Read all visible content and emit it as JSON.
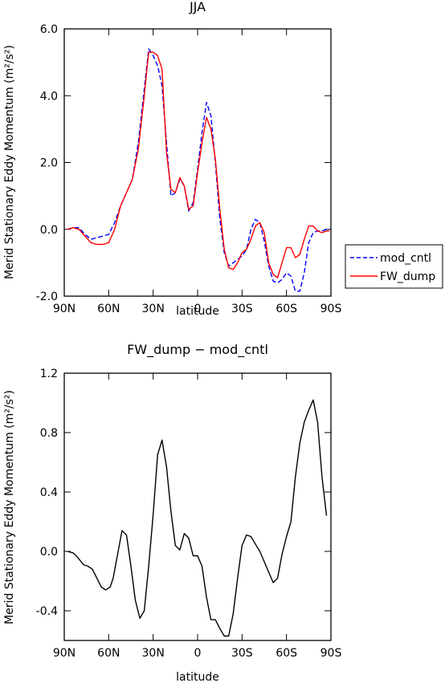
{
  "chart_data": [
    {
      "type": "line",
      "title": "JJA",
      "xlabel": "latitude",
      "ylabel": "Merid Stationary Eddy Momentum (m²/s²)",
      "ylim": [
        -2.0,
        6.0
      ],
      "xlim": [
        90,
        -90
      ],
      "x_ticks": [
        90,
        60,
        30,
        0,
        -30,
        -60,
        -90
      ],
      "x_tick_labels": [
        "90N",
        "60N",
        "30N",
        "0",
        "30S",
        "60S",
        "90S"
      ],
      "y_ticks": [
        -2.0,
        0.0,
        2.0,
        4.0,
        6.0
      ],
      "y_tick_labels": [
        "-2.0",
        "0.0",
        "2.0",
        "4.0",
        "6.0"
      ],
      "legend": [
        {
          "name": "mod_cntl",
          "color": "#0000ff",
          "style": "dashed"
        },
        {
          "name": "FW_dump",
          "color": "#ff0000",
          "style": "solid"
        }
      ],
      "series": [
        {
          "name": "mod_cntl",
          "color": "#0000ff",
          "dash": true,
          "x": [
            88,
            84,
            80,
            76,
            72,
            68,
            64,
            60,
            56,
            52,
            48,
            44,
            40,
            36,
            33,
            30,
            27,
            24,
            21,
            18,
            15,
            12,
            9,
            6,
            3,
            0,
            -3,
            -6,
            -9,
            -12,
            -15,
            -18,
            -21,
            -24,
            -27,
            -30,
            -33,
            -36,
            -39,
            -42,
            -45,
            -48,
            -51,
            -54,
            -57,
            -60,
            -63,
            -66,
            -69,
            -72,
            -75,
            -78,
            -81,
            -84,
            -87,
            -89
          ],
          "y": [
            0.0,
            0.05,
            0.05,
            -0.15,
            -0.3,
            -0.25,
            -0.2,
            -0.15,
            0.2,
            0.7,
            1.1,
            1.5,
            2.6,
            4.2,
            5.4,
            5.2,
            4.9,
            4.3,
            2.6,
            1.0,
            1.1,
            1.5,
            1.3,
            0.55,
            0.8,
            1.8,
            2.9,
            3.8,
            3.4,
            2.0,
            0.3,
            -0.7,
            -1.1,
            -1.0,
            -0.9,
            -0.8,
            -0.6,
            0.0,
            0.3,
            0.2,
            -0.35,
            -1.1,
            -1.55,
            -1.6,
            -1.5,
            -1.3,
            -1.4,
            -1.85,
            -1.85,
            -1.3,
            -0.4,
            -0.1,
            -0.05,
            -0.05,
            0.0,
            0.0
          ]
        },
        {
          "name": "FW_dump",
          "color": "#ff0000",
          "dash": false,
          "x": [
            88,
            84,
            80,
            76,
            72,
            68,
            64,
            60,
            56,
            52,
            48,
            44,
            40,
            36,
            33,
            30,
            27,
            24,
            21,
            18,
            15,
            12,
            9,
            6,
            3,
            0,
            -3,
            -6,
            -9,
            -12,
            -15,
            -18,
            -21,
            -24,
            -27,
            -30,
            -33,
            -36,
            -39,
            -42,
            -45,
            -48,
            -51,
            -54,
            -57,
            -60,
            -63,
            -66,
            -69,
            -72,
            -75,
            -78,
            -81,
            -84,
            -87,
            -89
          ],
          "y": [
            0.0,
            0.05,
            0.0,
            -0.2,
            -0.4,
            -0.45,
            -0.45,
            -0.4,
            0.0,
            0.7,
            1.1,
            1.5,
            2.4,
            4.0,
            5.3,
            5.3,
            5.2,
            4.8,
            2.3,
            1.2,
            1.1,
            1.55,
            1.3,
            0.6,
            0.7,
            1.7,
            2.6,
            3.35,
            3.0,
            2.1,
            0.6,
            -0.6,
            -1.15,
            -1.2,
            -1.0,
            -0.7,
            -0.6,
            -0.3,
            0.1,
            0.2,
            -0.1,
            -1.0,
            -1.35,
            -1.45,
            -1.0,
            -0.55,
            -0.55,
            -0.85,
            -0.75,
            -0.3,
            0.1,
            0.1,
            -0.05,
            -0.1,
            -0.05,
            -0.05
          ]
        }
      ]
    },
    {
      "type": "line",
      "title": "FW_dump − mod_cntl",
      "xlabel": "latitude",
      "ylabel": "Merid Stationary Eddy Momentum (m²/s²)",
      "ylim": [
        -0.6,
        1.2
      ],
      "xlim": [
        90,
        -90
      ],
      "x_ticks": [
        90,
        60,
        30,
        0,
        -30,
        -60,
        -90
      ],
      "x_tick_labels": [
        "90N",
        "60N",
        "30N",
        "0",
        "30S",
        "60S",
        "90S"
      ],
      "y_ticks": [
        -0.4,
        0.0,
        0.4,
        0.8,
        1.2
      ],
      "y_tick_labels": [
        "-0.4",
        "0.0",
        "0.4",
        "0.8",
        "1.2"
      ],
      "series": [
        {
          "name": "",
          "color": "#000000",
          "dash": false,
          "x": [
            88,
            84,
            81,
            77,
            74,
            71,
            68,
            65,
            62,
            59,
            57,
            54,
            51,
            48,
            45,
            42,
            39,
            36,
            33,
            30,
            27,
            24,
            21,
            18,
            15,
            12,
            9,
            6,
            3,
            0,
            -3,
            -6,
            -9,
            -12,
            -15,
            -18,
            -21,
            -24,
            -27,
            -30,
            -33,
            -36,
            -39,
            -42,
            -45,
            -48,
            -51,
            -54,
            -57,
            -60,
            -63,
            -66,
            -69,
            -72,
            -75,
            -78,
            -81,
            -84,
            -87
          ],
          "y": [
            0.0,
            -0.01,
            -0.04,
            -0.09,
            -0.1,
            -0.12,
            -0.18,
            -0.24,
            -0.26,
            -0.24,
            -0.18,
            -0.02,
            0.14,
            0.11,
            -0.1,
            -0.33,
            -0.45,
            -0.4,
            -0.1,
            0.25,
            0.65,
            0.75,
            0.57,
            0.27,
            0.04,
            0.01,
            0.12,
            0.09,
            -0.03,
            -0.03,
            -0.1,
            -0.31,
            -0.46,
            -0.46,
            -0.52,
            -0.57,
            -0.57,
            -0.42,
            -0.18,
            0.04,
            0.11,
            0.1,
            0.05,
            0.0,
            -0.07,
            -0.14,
            -0.21,
            -0.18,
            -0.02,
            0.1,
            0.2,
            0.5,
            0.73,
            0.87,
            0.95,
            1.02,
            0.87,
            0.5,
            0.24
          ]
        }
      ]
    }
  ],
  "legend_lines": {
    "mod_cntl": "mod_cntl",
    "FW_dump": "FW_dump"
  }
}
